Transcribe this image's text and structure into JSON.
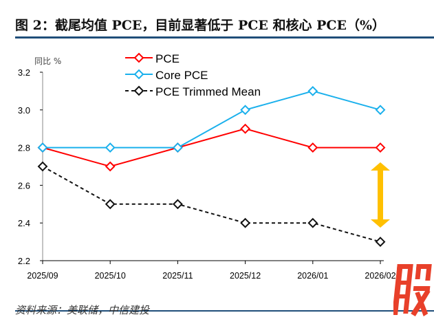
{
  "title": "图 2：截尾均值 PCE，目前显著低于 PCE 和核心 PCE（%）",
  "source": "资料来源：美联储，中信建投",
  "watermark": "股",
  "chart_data": {
    "type": "line",
    "ylabel": "同比 %",
    "ylim": [
      2.2,
      3.2
    ],
    "yticks": [
      "2.2",
      "2.4",
      "2.6",
      "2.8",
      "3.0",
      "3.2"
    ],
    "categories": [
      "2025/09",
      "2025/10",
      "2025/11",
      "2025/12",
      "2026/01",
      "2026/02"
    ],
    "legend_position": "top",
    "series": [
      {
        "name": "PCE",
        "color": "#ff0000",
        "dash": false,
        "values": [
          2.8,
          2.7,
          2.8,
          2.9,
          2.8,
          2.8
        ]
      },
      {
        "name": "Core PCE",
        "color": "#1ab0ec",
        "dash": false,
        "values": [
          2.8,
          2.8,
          2.8,
          3.0,
          3.1,
          3.0
        ]
      },
      {
        "name": "PCE Trimmed Mean",
        "color": "#111111",
        "dash": true,
        "values": [
          2.7,
          2.5,
          2.5,
          2.4,
          2.4,
          2.3
        ]
      }
    ],
    "annotation_color": "#ffc000"
  }
}
